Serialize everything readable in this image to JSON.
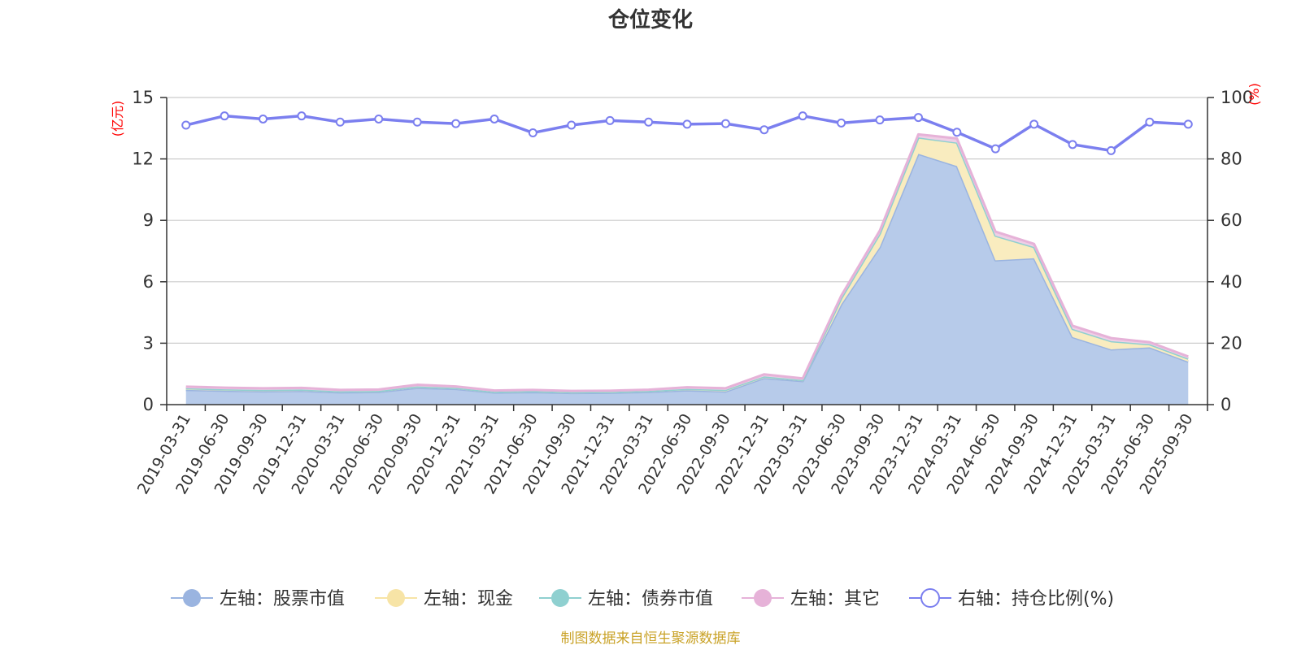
{
  "chart_data": {
    "type": "area",
    "title": "仓位变化",
    "left_axis": {
      "unit": "(亿元)",
      "range": [
        0,
        15
      ],
      "ticks": [
        "0",
        "3",
        "6",
        "9",
        "12",
        "15"
      ]
    },
    "right_axis": {
      "unit": "(%)",
      "range": [
        0,
        100
      ],
      "ticks": [
        "0",
        "20",
        "40",
        "60",
        "80",
        "100"
      ]
    },
    "grid": true,
    "legend_position": "bottom",
    "categories": [
      "2019-03-31",
      "2019-06-30",
      "2019-09-30",
      "2019-12-31",
      "2020-03-31",
      "2020-06-30",
      "2020-09-30",
      "2020-12-31",
      "2021-03-31",
      "2021-06-30",
      "2021-09-30",
      "2021-12-31",
      "2022-03-31",
      "2022-06-30",
      "2022-09-30",
      "2022-12-31",
      "2023-03-31",
      "2023-06-30",
      "2023-09-30",
      "2023-12-31",
      "2024-03-31",
      "2024-06-30",
      "2024-09-30",
      "2024-12-31",
      "2025-03-31",
      "2025-06-30",
      "2025-09-30"
    ],
    "series": [
      {
        "name": "左轴：股票市值",
        "axis": "left",
        "stack": true,
        "color": "#9ab4e0",
        "fill": "#b7cbea",
        "values": [
          0.72,
          0.68,
          0.65,
          0.67,
          0.6,
          0.62,
          0.82,
          0.77,
          0.59,
          0.61,
          0.57,
          0.58,
          0.62,
          0.7,
          0.64,
          1.3,
          1.15,
          4.9,
          7.7,
          12.25,
          11.65,
          7.05,
          7.15,
          3.3,
          2.7,
          2.8,
          2.1
        ]
      },
      {
        "name": "左轴：现金",
        "axis": "left",
        "stack": true,
        "color": "#f7e4a6",
        "fill": "#f9ecbf",
        "values": [
          0.08,
          0.07,
          0.07,
          0.07,
          0.05,
          0.05,
          0.07,
          0.05,
          0.04,
          0.05,
          0.04,
          0.04,
          0.05,
          0.07,
          0.08,
          0.08,
          0.05,
          0.3,
          0.65,
          0.8,
          1.15,
          1.2,
          0.55,
          0.4,
          0.4,
          0.15,
          0.15
        ]
      },
      {
        "name": "左轴：债券市值",
        "axis": "left",
        "stack": true,
        "color": "#8fd0d0",
        "fill": "#b4e0e0",
        "values": [
          0,
          0,
          0,
          0,
          0,
          0,
          0,
          0,
          0,
          0,
          0,
          0,
          0,
          0,
          0,
          0,
          0,
          0,
          0,
          0,
          0,
          0,
          0,
          0,
          0,
          0,
          0
        ]
      },
      {
        "name": "左轴：其它",
        "axis": "left",
        "stack": true,
        "color": "#e6b2d8",
        "fill": "#efcfe6",
        "values": [
          0.08,
          0.08,
          0.08,
          0.08,
          0.07,
          0.07,
          0.08,
          0.07,
          0.06,
          0.06,
          0.06,
          0.06,
          0.06,
          0.08,
          0.08,
          0.1,
          0.08,
          0.12,
          0.15,
          0.15,
          0.2,
          0.2,
          0.15,
          0.15,
          0.15,
          0.1,
          0.1
        ]
      },
      {
        "name": "右轴：持仓比例(%)",
        "axis": "right",
        "type": "line",
        "color": "#7b7fef",
        "values": [
          91,
          94,
          93,
          94,
          92,
          93,
          92,
          91.5,
          93,
          88.5,
          91,
          92.5,
          92,
          91.3,
          91.5,
          89.5,
          94,
          91.7,
          92.7,
          93.5,
          88.7,
          83.3,
          91.3,
          84.7,
          82.7,
          92,
          91.3
        ]
      }
    ],
    "source": "制图数据来自恒生聚源数据库"
  }
}
